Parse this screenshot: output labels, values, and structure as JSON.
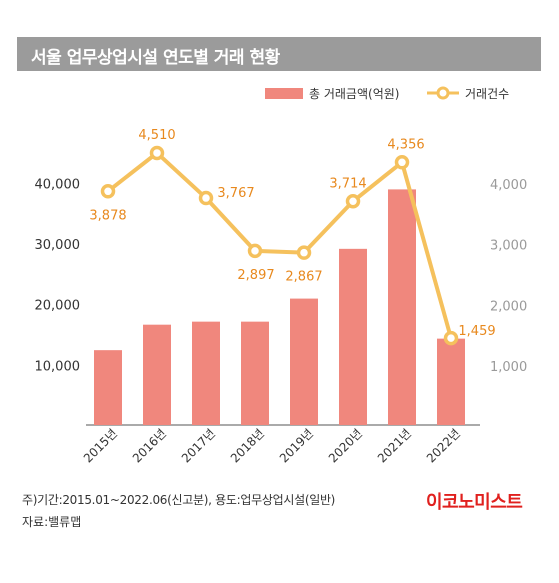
{
  "title": "서울 업무상업시설 연도별 거래 현황",
  "legend": {
    "amount": "총 거래금액(억원)",
    "count": "거래건수"
  },
  "footnote": "주)기간:2015.01~2022.06(신고분), 용도:업무상업시설(일반)",
  "source": "자료:밸류맵",
  "brand": "이코노미스트",
  "colors": {
    "title_bg": "#9b9b9b",
    "bar": "#f0877d",
    "line": "#f5c15d",
    "marker_fill": "#ffffff",
    "count_label": "#e8891e",
    "brand": "#e0201e"
  },
  "chart_data": {
    "type": "bar",
    "categories": [
      "2015년",
      "2016년",
      "2017년",
      "2018년",
      "2019년",
      "2020년",
      "2021년",
      "2022년"
    ],
    "series": [
      {
        "name": "총 거래금액(억원)",
        "type": "bar",
        "axis": "left",
        "values": [
          12500,
          16700,
          17200,
          17200,
          21000,
          29200,
          39000,
          14400
        ]
      },
      {
        "name": "거래건수",
        "type": "line",
        "axis": "right",
        "values": [
          3878,
          4510,
          3767,
          2897,
          2867,
          3714,
          4356,
          1459
        ],
        "labels": [
          "3,878",
          "4,510",
          "3,767",
          "2,897",
          "2,867",
          "3,714",
          "4,356",
          "1,459"
        ]
      }
    ],
    "y_left": {
      "ticks": [
        10000,
        20000,
        30000,
        40000
      ],
      "tick_labels": [
        "10,000",
        "20,000",
        "30,000",
        "40,000"
      ],
      "range": [
        0,
        40000
      ]
    },
    "y_right": {
      "ticks": [
        1000,
        2000,
        3000,
        4000
      ],
      "tick_labels": [
        "1,000",
        "2,000",
        "3,000",
        "4,000"
      ],
      "range": [
        0,
        4000
      ]
    },
    "grid": false,
    "legend_position": "top-right"
  }
}
